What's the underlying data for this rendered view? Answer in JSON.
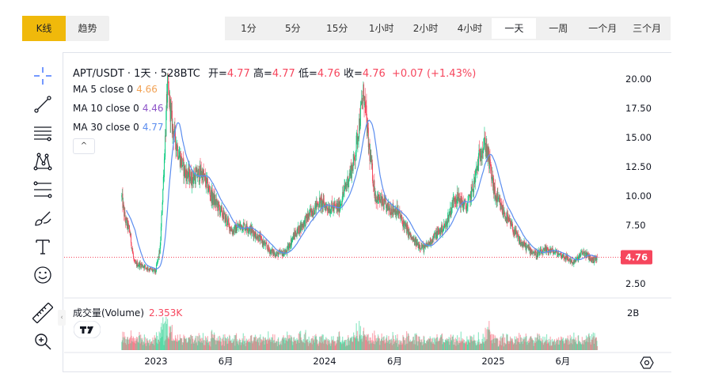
{
  "tabs": [
    {
      "label": "K线",
      "active": true
    },
    {
      "label": "趋势",
      "active": false
    }
  ],
  "intervals": [
    {
      "label": "1分",
      "active": false
    },
    {
      "label": "5分",
      "active": false
    },
    {
      "label": "15分",
      "active": false
    },
    {
      "label": "1小时",
      "active": false
    },
    {
      "label": "2小时",
      "active": false
    },
    {
      "label": "4小时",
      "active": false
    },
    {
      "label": "一天",
      "active": true
    },
    {
      "label": "一周",
      "active": false
    },
    {
      "label": "一个月",
      "active": false
    },
    {
      "label": "三个月",
      "active": false
    }
  ],
  "toolbar_icons": [
    "crosshair-icon",
    "trend-line-icon",
    "horizontal-lines-icon",
    "pattern-icon",
    "fib-retracement-icon",
    "brush-icon",
    "text-icon",
    "emoji-icon",
    "ruler-icon",
    "zoom-in-icon"
  ],
  "legend": {
    "symbol": "APT/USDT · 1天 · 528BTC",
    "open_label": "开=",
    "open": "4.77",
    "high_label": "高=",
    "high": "4.77",
    "low_label": "低=",
    "low": "4.76",
    "close_label": "收=",
    "close": "4.76",
    "change": "+0.07 (+1.43%)"
  },
  "ma": [
    {
      "label": "MA 5 close 0",
      "value": "4.66",
      "color": "#f2a255"
    },
    {
      "label": "MA 10 close 0",
      "value": "4.46",
      "color": "#8e55c9"
    },
    {
      "label": "MA 30 close 0",
      "value": "4.77",
      "color": "#5b8def"
    }
  ],
  "collapse_symbol": "^",
  "collapse_handle_symbol": "‹",
  "volume": {
    "label": "成交量(Volume)",
    "value": "2.353K",
    "axis_label": "2B"
  },
  "current_price_tag": "4.76",
  "colors": {
    "up": "#0ecb81",
    "down": "#f6465d",
    "accent": "#f0b90b"
  },
  "chart_data": {
    "type": "candlestick",
    "title": "APT/USDT · 1天",
    "y_ticks": [
      "20.00",
      "17.50",
      "15.00",
      "12.50",
      "10.00",
      "7.50",
      "5.00",
      "2.50"
    ],
    "ylim": [
      2.5,
      20.0
    ],
    "x_ticks": [
      "2023",
      "6月",
      "2024",
      "6月",
      "2025",
      "6月"
    ],
    "current_price": 4.76,
    "price_path": [
      [
        "2022-10-19",
        9.9
      ],
      [
        "2022-10-26",
        8.0
      ],
      [
        "2022-11-05",
        7.0
      ],
      [
        "2022-11-15",
        4.2
      ],
      [
        "2022-12-01",
        4.1
      ],
      [
        "2022-12-15",
        3.8
      ],
      [
        "2022-12-31",
        3.5
      ],
      [
        "2023-01-10",
        5.5
      ],
      [
        "2023-01-20",
        14.0
      ],
      [
        "2023-01-26",
        19.5
      ],
      [
        "2023-02-05",
        16.0
      ],
      [
        "2023-02-20",
        13.5
      ],
      [
        "2023-03-05",
        12.0
      ],
      [
        "2023-03-20",
        11.5
      ],
      [
        "2023-04-10",
        12.0
      ],
      [
        "2023-05-01",
        10.0
      ],
      [
        "2023-06-01",
        8.0
      ],
      [
        "2023-06-15",
        7.0
      ],
      [
        "2023-07-05",
        7.5
      ],
      [
        "2023-07-20",
        7.3
      ],
      [
        "2023-08-10",
        6.5
      ],
      [
        "2023-09-05",
        5.3
      ],
      [
        "2023-09-20",
        5.0
      ],
      [
        "2023-10-10",
        5.2
      ],
      [
        "2023-10-25",
        6.5
      ],
      [
        "2023-11-15",
        7.6
      ],
      [
        "2023-12-01",
        8.5
      ],
      [
        "2023-12-20",
        9.5
      ],
      [
        "2024-01-10",
        9.0
      ],
      [
        "2024-02-01",
        9.0
      ],
      [
        "2024-03-05",
        13.0
      ],
      [
        "2024-03-26",
        19.0
      ],
      [
        "2024-04-05",
        14.5
      ],
      [
        "2024-04-20",
        10.0
      ],
      [
        "2024-05-15",
        9.0
      ],
      [
        "2024-06-05",
        8.8
      ],
      [
        "2024-06-25",
        7.3
      ],
      [
        "2024-07-10",
        6.2
      ],
      [
        "2024-08-05",
        5.5
      ],
      [
        "2024-08-25",
        6.5
      ],
      [
        "2024-09-20",
        7.5
      ],
      [
        "2024-10-10",
        10.0
      ],
      [
        "2024-11-05",
        9.0
      ],
      [
        "2024-11-20",
        11.0
      ],
      [
        "2024-12-05",
        14.0
      ],
      [
        "2024-12-15",
        14.5
      ],
      [
        "2024-12-25",
        12.5
      ],
      [
        "2025-01-05",
        10.0
      ],
      [
        "2025-02-01",
        8.0
      ],
      [
        "2025-03-01",
        6.0
      ],
      [
        "2025-04-05",
        5.0
      ],
      [
        "2025-05-01",
        5.4
      ],
      [
        "2025-06-01",
        4.9
      ],
      [
        "2025-06-25",
        4.3
      ],
      [
        "2025-07-15",
        5.2
      ],
      [
        "2025-08-05",
        4.5
      ],
      [
        "2025-08-15",
        4.76
      ]
    ],
    "volume_series": "daily",
    "volume_ylim": [
      0,
      2000000000
    ]
  }
}
